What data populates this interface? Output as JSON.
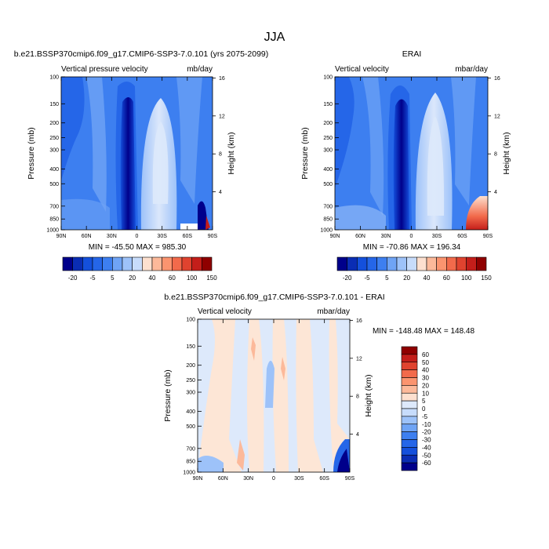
{
  "figure": {
    "title": "JJA",
    "x_tick_labels": [
      "90N",
      "60N",
      "30N",
      "0",
      "30S",
      "60S",
      "90S"
    ],
    "y_ticks": [
      100,
      150,
      200,
      250,
      300,
      400,
      500,
      700,
      850,
      1000
    ],
    "height_ticks": [
      16,
      12,
      8,
      4
    ],
    "ylabel": "Pressure (mb)",
    "y2label": "Height (km)"
  },
  "colors": {
    "full_scale": [
      "#00008b",
      "#0a2db4",
      "#1450dc",
      "#2566e8",
      "#3d7ff0",
      "#6fa4f5",
      "#9dc2f9",
      "#c7dcfb",
      "#fde0cf",
      "#fcb99a",
      "#fb946f",
      "#f26a4b",
      "#e0432f",
      "#c41e1a",
      "#8f0000"
    ],
    "diff_scale": [
      "#00008b",
      "#0a2db4",
      "#1450dc",
      "#2566e8",
      "#3d7ff0",
      "#6fa4f5",
      "#9dc2f9",
      "#c7dcfb",
      "#dde9fb",
      "#fde0cf",
      "#fcb99a",
      "#fb946f",
      "#f26a4b",
      "#e0432f",
      "#c41e1a",
      "#8f0000"
    ]
  },
  "panels": [
    {
      "id": "model",
      "title": "b.e21.BSSP370cmip6.f09_g17.CMIP6-SSP3-7.0.101 (yrs 2075-2099)",
      "left_label": "Vertical pressure velocity",
      "right_label": "mb/day",
      "stats": "MIN = -45.50  MAX = 985.30"
    },
    {
      "id": "obs",
      "title": "ERAI",
      "left_label": "Vertical velocity",
      "right_label": "mbar/day",
      "stats": "MIN = -70.86  MAX = 196.34"
    },
    {
      "id": "diff",
      "title": "b.e21.BSSP370cmip6.f09_g17.CMIP6-SSP3-7.0.101 - ERAI",
      "left_label": "Vertical velocity",
      "right_label": "mbar/day",
      "stats": "MIN = -148.48  MAX = 148.48"
    }
  ],
  "colorbars": {
    "full_labels": [
      "-20",
      "-5",
      "5",
      "20",
      "40",
      "60",
      "100",
      "150"
    ],
    "diff_labels": [
      "60",
      "50",
      "40",
      "30",
      "20",
      "10",
      "5",
      "0",
      "-5",
      "-10",
      "-20",
      "-30",
      "-40",
      "-50",
      "-60"
    ]
  },
  "chart_data": [
    {
      "type": "heatmap",
      "title": "Vertical pressure velocity",
      "units": "mb/day",
      "x_categories": [
        "90N",
        "60N",
        "30N",
        "0",
        "30S",
        "60S",
        "90S"
      ],
      "y_levels_mb": [
        100,
        150,
        200,
        250,
        300,
        400,
        500,
        700,
        850,
        1000
      ],
      "min": -45.5,
      "max": 985.3
    },
    {
      "type": "heatmap",
      "title": "Vertical velocity",
      "units": "mbar/day",
      "x_categories": [
        "90N",
        "60N",
        "30N",
        "0",
        "30S",
        "60S",
        "90S"
      ],
      "y_levels_mb": [
        100,
        150,
        200,
        250,
        300,
        400,
        500,
        700,
        850,
        1000
      ],
      "min": -70.86,
      "max": 196.34
    },
    {
      "type": "heatmap",
      "title": "Vertical velocity",
      "units": "mbar/day",
      "x_categories": [
        "90N",
        "60N",
        "30N",
        "0",
        "30S",
        "60S",
        "90S"
      ],
      "y_levels_mb": [
        100,
        150,
        200,
        250,
        300,
        400,
        500,
        700,
        850,
        1000
      ],
      "min": -148.48,
      "max": 148.48
    }
  ]
}
